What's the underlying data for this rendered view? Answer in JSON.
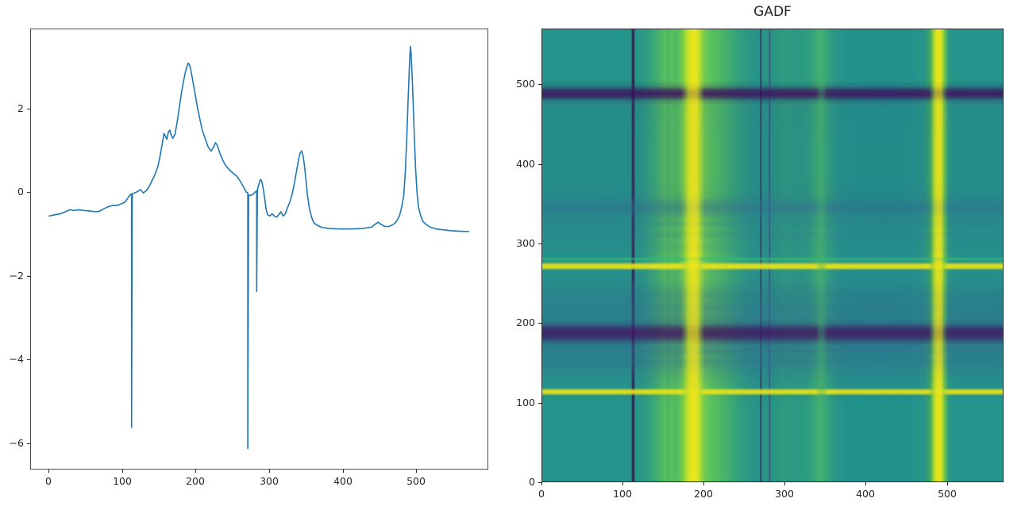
{
  "figure": {
    "background": "#ffffff",
    "line_color": "#1f77b4",
    "axis_color": "#262626"
  },
  "gadf": {
    "title": "GADF"
  },
  "chart_data": [
    {
      "type": "line",
      "title": "",
      "xlabel": "",
      "ylabel": "",
      "legend": "none",
      "grid": false,
      "line_color": "#1f77b4",
      "xlim": [
        -24.7,
        595.7
      ],
      "ylim": [
        -6.585,
        3.905
      ],
      "xticks": [
        0,
        100,
        200,
        300,
        400,
        500
      ],
      "yticks": [
        2,
        0,
        -2,
        -4,
        -6
      ],
      "x": [
        0,
        8,
        15,
        22,
        28,
        33,
        40,
        48,
        55,
        62,
        68,
        74,
        80,
        86,
        92,
        98,
        103,
        107,
        110,
        112,
        112,
        113,
        116,
        120,
        124,
        128,
        132,
        136,
        140,
        144,
        148,
        151,
        154,
        156,
        158,
        160,
        162,
        164,
        166,
        168,
        171,
        174,
        177,
        180,
        183,
        186,
        189,
        191,
        193,
        196,
        199,
        202,
        205,
        208,
        212,
        216,
        220,
        223,
        226,
        229,
        232,
        236,
        240,
        245,
        250,
        255,
        259,
        263,
        266,
        268,
        270,
        270,
        271,
        274,
        277,
        280,
        282,
        282,
        283,
        285,
        287,
        289,
        291,
        293,
        295,
        297,
        300,
        303,
        306,
        309,
        312,
        315,
        318,
        321,
        324,
        327,
        330,
        333,
        336,
        339,
        341,
        343,
        345,
        347,
        349,
        351,
        354,
        357,
        360,
        365,
        370,
        380,
        395,
        410,
        425,
        438,
        443,
        447,
        451,
        456,
        462,
        468,
        472,
        476,
        479,
        482,
        484,
        486,
        488,
        490,
        491,
        492,
        494,
        496,
        498,
        500,
        502,
        505,
        508,
        512,
        518,
        526,
        535,
        545,
        555,
        565,
        570
      ],
      "y": [
        -0.55,
        -0.52,
        -0.5,
        -0.45,
        -0.4,
        -0.42,
        -0.4,
        -0.42,
        -0.43,
        -0.45,
        -0.44,
        -0.38,
        -0.33,
        -0.3,
        -0.3,
        -0.26,
        -0.22,
        -0.12,
        -0.05,
        -0.02,
        -5.6,
        -0.02,
        0,
        0.03,
        0.08,
        0,
        0.05,
        0.15,
        0.3,
        0.45,
        0.65,
        0.9,
        1.2,
        1.42,
        1.35,
        1.28,
        1.45,
        1.5,
        1.38,
        1.3,
        1.4,
        1.7,
        2.05,
        2.4,
        2.7,
        2.95,
        3.1,
        3.05,
        2.9,
        2.6,
        2.3,
        2,
        1.75,
        1.5,
        1.3,
        1.1,
        1,
        1.08,
        1.2,
        1.12,
        0.95,
        0.78,
        0.65,
        0.55,
        0.47,
        0.4,
        0.3,
        0.18,
        0.08,
        0.02,
        0,
        -6.1,
        -0.05,
        -0.06,
        -0.03,
        0.02,
        0.05,
        -2.35,
        0.08,
        0.2,
        0.32,
        0.28,
        0.1,
        -0.15,
        -0.4,
        -0.52,
        -0.55,
        -0.5,
        -0.55,
        -0.58,
        -0.52,
        -0.45,
        -0.55,
        -0.5,
        -0.35,
        -0.22,
        -0.05,
        0.2,
        0.5,
        0.8,
        0.95,
        1,
        0.9,
        0.65,
        0.3,
        -0.05,
        -0.4,
        -0.6,
        -0.72,
        -0.78,
        -0.82,
        -0.85,
        -0.86,
        -0.86,
        -0.85,
        -0.82,
        -0.75,
        -0.7,
        -0.75,
        -0.8,
        -0.8,
        -0.75,
        -0.68,
        -0.55,
        -0.35,
        -0.05,
        0.5,
        1.3,
        2.3,
        3.2,
        3.5,
        3.3,
        2.5,
        1.5,
        0.6,
        0,
        -0.35,
        -0.55,
        -0.68,
        -0.75,
        -0.82,
        -0.86,
        -0.88,
        -0.9,
        -0.91,
        -0.92,
        -0.92
      ]
    },
    {
      "type": "heatmap",
      "title": "GADF",
      "colormap": "viridis",
      "extent": [
        0,
        570,
        0,
        570
      ],
      "xticks": [
        0,
        100,
        200,
        300,
        400,
        500
      ],
      "yticks": [
        0,
        100,
        200,
        300,
        400,
        500
      ],
      "base_color": "#24958c",
      "vertical_stops": [
        [
          0,
          "#24958c"
        ],
        [
          104,
          "#24958c"
        ],
        [
          110,
          "#2a8f89"
        ],
        [
          111.5,
          "#2d2f55"
        ],
        [
          113.5,
          "#2d2f55"
        ],
        [
          115,
          "#289389"
        ],
        [
          126,
          "#2b9a84"
        ],
        [
          134,
          "#35a47b"
        ],
        [
          142,
          "#41ad70"
        ],
        [
          148,
          "#4db765"
        ],
        [
          152,
          "#59c05c"
        ],
        [
          156,
          "#4bb567"
        ],
        [
          160,
          "#5ac15b"
        ],
        [
          165,
          "#50ba62"
        ],
        [
          170,
          "#5dc358"
        ],
        [
          175,
          "#81d145"
        ],
        [
          180,
          "#c4e127"
        ],
        [
          184,
          "#e5e41e"
        ],
        [
          188,
          "#ece51d"
        ],
        [
          192,
          "#dde322"
        ],
        [
          196,
          "#a8dc35"
        ],
        [
          201,
          "#72ca53"
        ],
        [
          207,
          "#5ec45a"
        ],
        [
          213,
          "#55bd60"
        ],
        [
          219,
          "#4fb964"
        ],
        [
          226,
          "#46b26b"
        ],
        [
          234,
          "#3baa73"
        ],
        [
          243,
          "#32a07e"
        ],
        [
          254,
          "#2b9885"
        ],
        [
          264,
          "#27948a"
        ],
        [
          269,
          "#27948a"
        ],
        [
          270.5,
          "#2d2f55"
        ],
        [
          272,
          "#27948a"
        ],
        [
          279.5,
          "#28948a"
        ],
        [
          281.5,
          "#41557a"
        ],
        [
          283,
          "#28948a"
        ],
        [
          292,
          "#2a987f"
        ],
        [
          300,
          "#2d9c80"
        ],
        [
          310,
          "#2b9a83"
        ],
        [
          322,
          "#2b9a83"
        ],
        [
          330,
          "#2e9e7f"
        ],
        [
          337,
          "#39a876"
        ],
        [
          343,
          "#42b06e"
        ],
        [
          347,
          "#40ae70"
        ],
        [
          353,
          "#34a37c"
        ],
        [
          362,
          "#2a9787"
        ],
        [
          375,
          "#23928c"
        ],
        [
          420,
          "#22918c"
        ],
        [
          455,
          "#23928c"
        ],
        [
          472,
          "#27968a"
        ],
        [
          480,
          "#3da564"
        ],
        [
          485,
          "#a8d92f"
        ],
        [
          488,
          "#e2e41f"
        ],
        [
          491,
          "#ece51d"
        ],
        [
          494,
          "#d4e222"
        ],
        [
          498,
          "#6cc44f"
        ],
        [
          503,
          "#2c9a82"
        ],
        [
          510,
          "#24948c"
        ],
        [
          570,
          "#24948c"
        ]
      ],
      "horizontal_stops": [
        [
          570,
          "rgba(0,0,0,0)"
        ],
        [
          505,
          "rgba(0,0,0,0)"
        ],
        [
          498,
          "rgba(45,40,90,0.25)"
        ],
        [
          493,
          "rgba(59,15,95,0.72)"
        ],
        [
          489,
          "rgba(64,13,90,0.85)"
        ],
        [
          485,
          "rgba(59,15,95,0.72)"
        ],
        [
          480,
          "rgba(45,50,100,0.3)"
        ],
        [
          474,
          "rgba(40,80,120,0.12)"
        ],
        [
          430,
          "rgba(35,85,125,0.1)"
        ],
        [
          380,
          "rgba(35,85,125,0.1)"
        ],
        [
          360,
          "rgba(40,90,130,0.18)"
        ],
        [
          352,
          "rgba(49,104,142,0.42)"
        ],
        [
          345,
          "rgba(49,104,142,0.55)"
        ],
        [
          338,
          "rgba(49,104,142,0.42)"
        ],
        [
          331,
          "rgba(49,104,142,0.22)"
        ],
        [
          325,
          "rgba(49,104,142,0.3)"
        ],
        [
          318,
          "rgba(49,104,142,0.14)"
        ],
        [
          311,
          "rgba(49,104,142,0.26)"
        ],
        [
          304,
          "rgba(49,104,142,0.12)"
        ],
        [
          296,
          "rgba(49,104,142,0.18)"
        ],
        [
          288,
          "rgba(49,104,142,0.1)"
        ],
        [
          283,
          "rgba(40,120,130,0.08)"
        ],
        [
          281.5,
          "rgba(53,183,121,0.6)"
        ],
        [
          279.5,
          "rgba(53,183,121,0.6)"
        ],
        [
          277,
          "rgba(45,110,140,0.1)"
        ],
        [
          273,
          "rgba(232,226,24,0.92)"
        ],
        [
          269.5,
          "rgba(232,226,24,0.92)"
        ],
        [
          266,
          "rgba(49,104,142,0.14)"
        ],
        [
          258,
          "rgba(49,104,142,0.12)"
        ],
        [
          248,
          "rgba(49,104,142,0.22)"
        ],
        [
          240,
          "rgba(49,104,142,0.34)"
        ],
        [
          233,
          "rgba(49,104,142,0.44)"
        ],
        [
          227,
          "rgba(49,104,142,0.36)"
        ],
        [
          220,
          "rgba(49,104,142,0.5)"
        ],
        [
          212,
          "rgba(49,104,142,0.42)"
        ],
        [
          205,
          "rgba(49,104,142,0.5)"
        ],
        [
          199,
          "rgba(52,80,130,0.55)"
        ],
        [
          194,
          "rgba(60,35,105,0.72)"
        ],
        [
          190,
          "rgba(64,20,98,0.82)"
        ],
        [
          186,
          "rgba(66,22,99,0.85)"
        ],
        [
          182,
          "rgba(62,25,100,0.78)"
        ],
        [
          177,
          "rgba(56,55,118,0.6)"
        ],
        [
          171,
          "rgba(49,104,142,0.5)"
        ],
        [
          164,
          "rgba(49,104,142,0.56)"
        ],
        [
          157,
          "rgba(49,104,142,0.42)"
        ],
        [
          150,
          "rgba(49,104,142,0.5)"
        ],
        [
          143,
          "rgba(49,104,142,0.34)"
        ],
        [
          135,
          "rgba(49,104,142,0.22)"
        ],
        [
          126,
          "rgba(49,104,142,0.12)"
        ],
        [
          118,
          "rgba(49,104,142,0.06)"
        ],
        [
          114.5,
          "rgba(232,226,24,0.9)"
        ],
        [
          111.5,
          "rgba(232,226,24,0.9)"
        ],
        [
          108,
          "rgba(0,0,0,0.02)"
        ],
        [
          100,
          "rgba(0,0,0,0)"
        ],
        [
          0,
          "rgba(0,0,0,0)"
        ]
      ],
      "column_mask": [
        [
          0,
          1
        ],
        [
          172,
          1
        ],
        [
          181,
          0.3
        ],
        [
          192,
          0.3
        ],
        [
          201,
          1
        ],
        [
          339,
          1
        ],
        [
          343,
          0.65
        ],
        [
          348,
          0.65
        ],
        [
          353,
          1
        ],
        [
          478,
          1
        ],
        [
          486,
          0.35
        ],
        [
          494,
          0.35
        ],
        [
          502,
          1
        ],
        [
          570,
          1
        ]
      ]
    }
  ]
}
